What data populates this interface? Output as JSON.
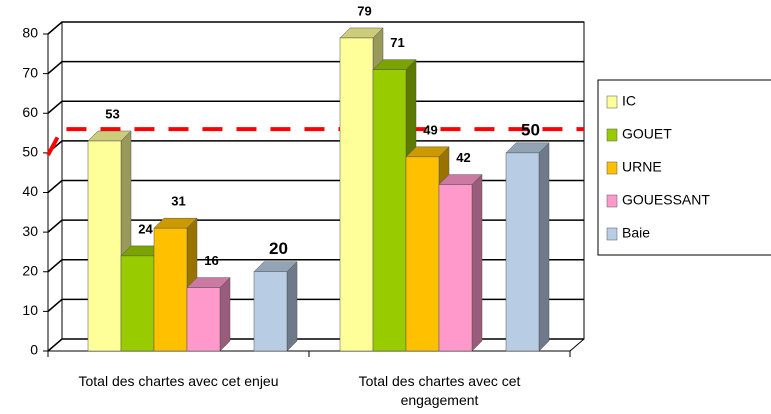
{
  "chart_data": {
    "type": "bar3d",
    "categories": [
      "Total des chartes avec cet enjeu",
      "Total des chartes avec cet engagement"
    ],
    "series": [
      {
        "name": "IC",
        "color": "#ffff99",
        "values": [
          53,
          79
        ]
      },
      {
        "name": "GOUET",
        "color": "#99cc00",
        "values": [
          24,
          71
        ]
      },
      {
        "name": "URNE",
        "color": "#ffc000",
        "values": [
          31,
          49
        ]
      },
      {
        "name": "GOUESSANT",
        "color": "#ff99cc",
        "values": [
          16,
          42
        ]
      },
      {
        "name": "Baie",
        "color": "#b8cce4",
        "values": [
          20,
          50
        ]
      }
    ],
    "reference_line": {
      "value": 55,
      "color": "#ff0000"
    },
    "ylim": [
      0,
      80
    ],
    "yticks": [
      0,
      10,
      20,
      30,
      40,
      50,
      60,
      70,
      80
    ],
    "grid": true,
    "legend": "right"
  }
}
